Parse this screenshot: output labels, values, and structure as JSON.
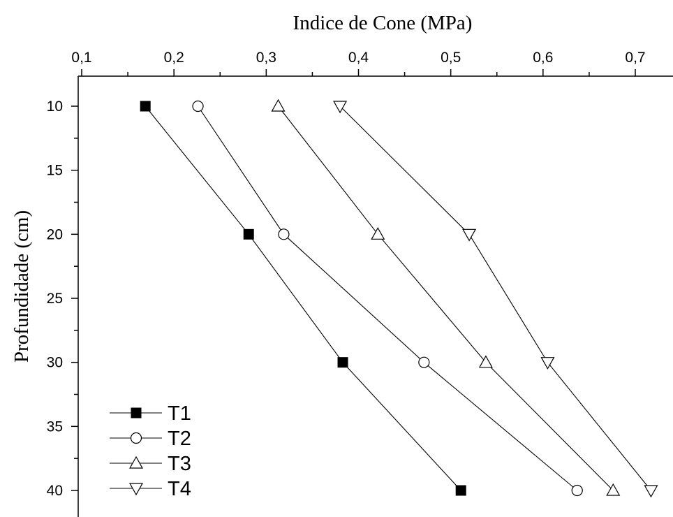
{
  "chart_data": {
    "type": "line",
    "title": "",
    "xlabel": "Indice de Cone (MPa)",
    "ylabel": "Profundidade (cm)",
    "x_axis_position": "top",
    "y_axis_inverted": true,
    "xlim": [
      0.1,
      0.7
    ],
    "ylim": [
      10,
      40
    ],
    "x_ticks": [
      "0,1",
      "0,2",
      "0,3",
      "0,4",
      "0,5",
      "0,6",
      "0,7"
    ],
    "y_ticks": [
      "10",
      "15",
      "20",
      "25",
      "30",
      "35",
      "40"
    ],
    "grid": false,
    "legend_position": "bottom-left",
    "series": [
      {
        "name": "T1",
        "marker": "filled-square",
        "x": [
          0.169,
          0.281,
          0.383,
          0.511
        ],
        "y": [
          10,
          20,
          30,
          40
        ]
      },
      {
        "name": "T2",
        "marker": "open-circle",
        "x": [
          0.226,
          0.319,
          0.471,
          0.637
        ],
        "y": [
          10,
          20,
          30,
          40
        ]
      },
      {
        "name": "T3",
        "marker": "open-triangle-up",
        "x": [
          0.313,
          0.421,
          0.538,
          0.676
        ],
        "y": [
          10,
          20,
          30,
          40
        ]
      },
      {
        "name": "T4",
        "marker": "open-triangle-down",
        "x": [
          0.38,
          0.52,
          0.605,
          0.717
        ],
        "y": [
          10,
          20,
          30,
          40
        ]
      }
    ]
  }
}
